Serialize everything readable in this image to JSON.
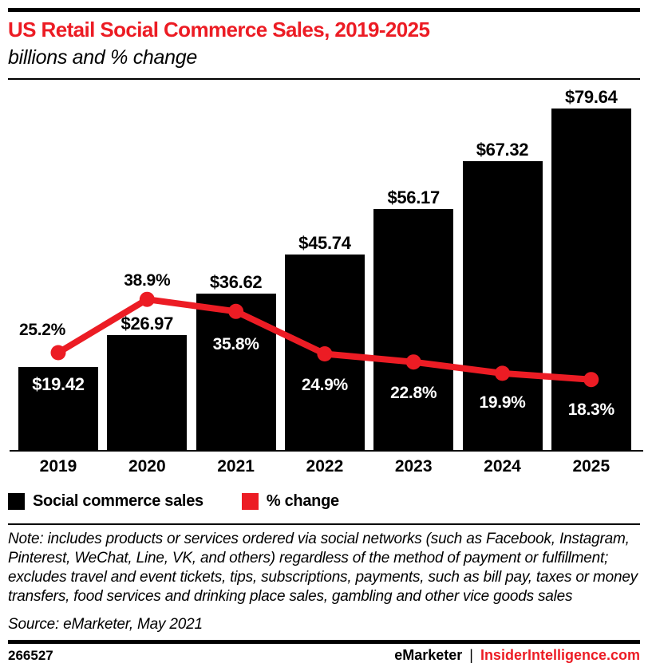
{
  "header": {
    "title": "US Retail Social Commerce Sales, 2019-2025",
    "subtitle": "billions and % change"
  },
  "chart_data": {
    "type": "bar",
    "title": "US Retail Social Commerce Sales, 2019-2025",
    "subtitle": "billions and % change",
    "categories": [
      "2019",
      "2020",
      "2021",
      "2022",
      "2023",
      "2024",
      "2025"
    ],
    "series": [
      {
        "name": "Social commerce sales",
        "type": "bar",
        "unit": "US$ billions",
        "color": "#000000",
        "values": [
          19.42,
          26.97,
          36.62,
          45.74,
          56.17,
          67.32,
          79.64
        ],
        "labels": [
          "$19.42",
          "$26.97",
          "$36.62",
          "$45.74",
          "$56.17",
          "$67.32",
          "$79.64"
        ]
      },
      {
        "name": "% change",
        "type": "line",
        "unit": "%",
        "color": "#EC1C24",
        "values": [
          25.2,
          38.9,
          35.8,
          24.9,
          22.8,
          19.9,
          18.3
        ],
        "labels": [
          "25.2%",
          "38.9%",
          "35.8%",
          "24.9%",
          "22.8%",
          "19.9%",
          "18.3%"
        ]
      }
    ],
    "xlabel": "",
    "ylabel": "",
    "ylim": [
      0,
      79.64
    ],
    "grid": false,
    "y_axis_visible": false,
    "legend_position": "bottom"
  },
  "legend": {
    "items": [
      {
        "label": "Social commerce sales",
        "color": "#000000"
      },
      {
        "label": "% change",
        "color": "#EC1C24"
      }
    ]
  },
  "note": {
    "text": "Note: includes products or services ordered via social networks (such as Facebook, Instagram, Pinterest, WeChat, Line, VK, and others) regardless of the method of payment or fulfillment; excludes travel and event tickets, tips, subscriptions, payments, such as bill pay, taxes or money transfers, food services and drinking place sales, gambling and other vice goods sales",
    "source": "Source: eMarketer, May 2021"
  },
  "footer": {
    "chart_id": "266527",
    "brand": "eMarketer",
    "separator": "|",
    "site": "InsiderIntelligence.com"
  },
  "colors": {
    "accent_red": "#EC1C24",
    "bar_black": "#000000",
    "title_red": "#EC1C24",
    "label_white": "#FFFFFF"
  }
}
